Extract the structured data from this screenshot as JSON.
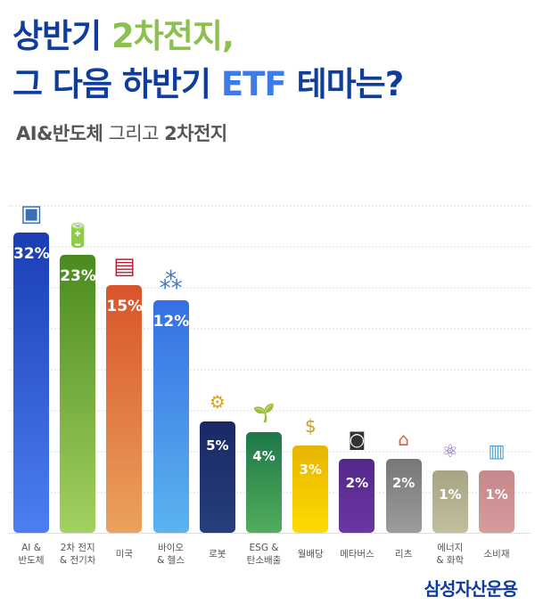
{
  "title": {
    "line1_a": "상반기 ",
    "line1_b": "2차전지,",
    "line2_a": "그 다음 하반기 ",
    "line2_b": "ETF",
    "line2_c": " 테마는?"
  },
  "subtitle": {
    "a": "AI&반도체",
    "b": " 그리고 ",
    "c": "2차전지"
  },
  "brand": "삼성자산운용",
  "chart_data": {
    "type": "bar",
    "categories": [
      "AI &\n반도체",
      "2차 전지\n& 전기차",
      "미국",
      "바이오\n& 헬스",
      "로봇",
      "ESG &\n탄소배출",
      "월배당",
      "메타버스",
      "리츠",
      "에너지\n& 화학",
      "소비재"
    ],
    "values": [
      32,
      23,
      15,
      12,
      5,
      4,
      3,
      2,
      2,
      1,
      1
    ],
    "labels": [
      "32%",
      "23%",
      "15%",
      "12%",
      "5%",
      "4%",
      "3%",
      "2%",
      "2%",
      "1%",
      "1%"
    ],
    "icons": [
      "chip-icon",
      "battery-icon",
      "us-flag-icon",
      "molecule-icon",
      "robot-arm-icon",
      "sprout-icon",
      "money-bag-icon",
      "vr-headset-icon",
      "house-icon",
      "atom-icon",
      "shopping-basket-icon"
    ],
    "colors": [
      [
        "#1a3db5",
        "#4d7ef2"
      ],
      [
        "#4a8a1e",
        "#a3d162"
      ],
      [
        "#d8542a",
        "#eba25e"
      ],
      [
        "#3570e3",
        "#5cb3ef"
      ],
      [
        "#1a2866",
        "#263f7c"
      ],
      [
        "#1d7849",
        "#52ad5b"
      ],
      [
        "#e6b400",
        "#ffdc00"
      ],
      [
        "#56288a",
        "#6b36a3"
      ],
      [
        "#777777",
        "#9c9c9c"
      ],
      [
        "#a6a484",
        "#c2bf9c"
      ],
      [
        "#c5878a",
        "#d69c9c"
      ]
    ],
    "grid": true
  }
}
